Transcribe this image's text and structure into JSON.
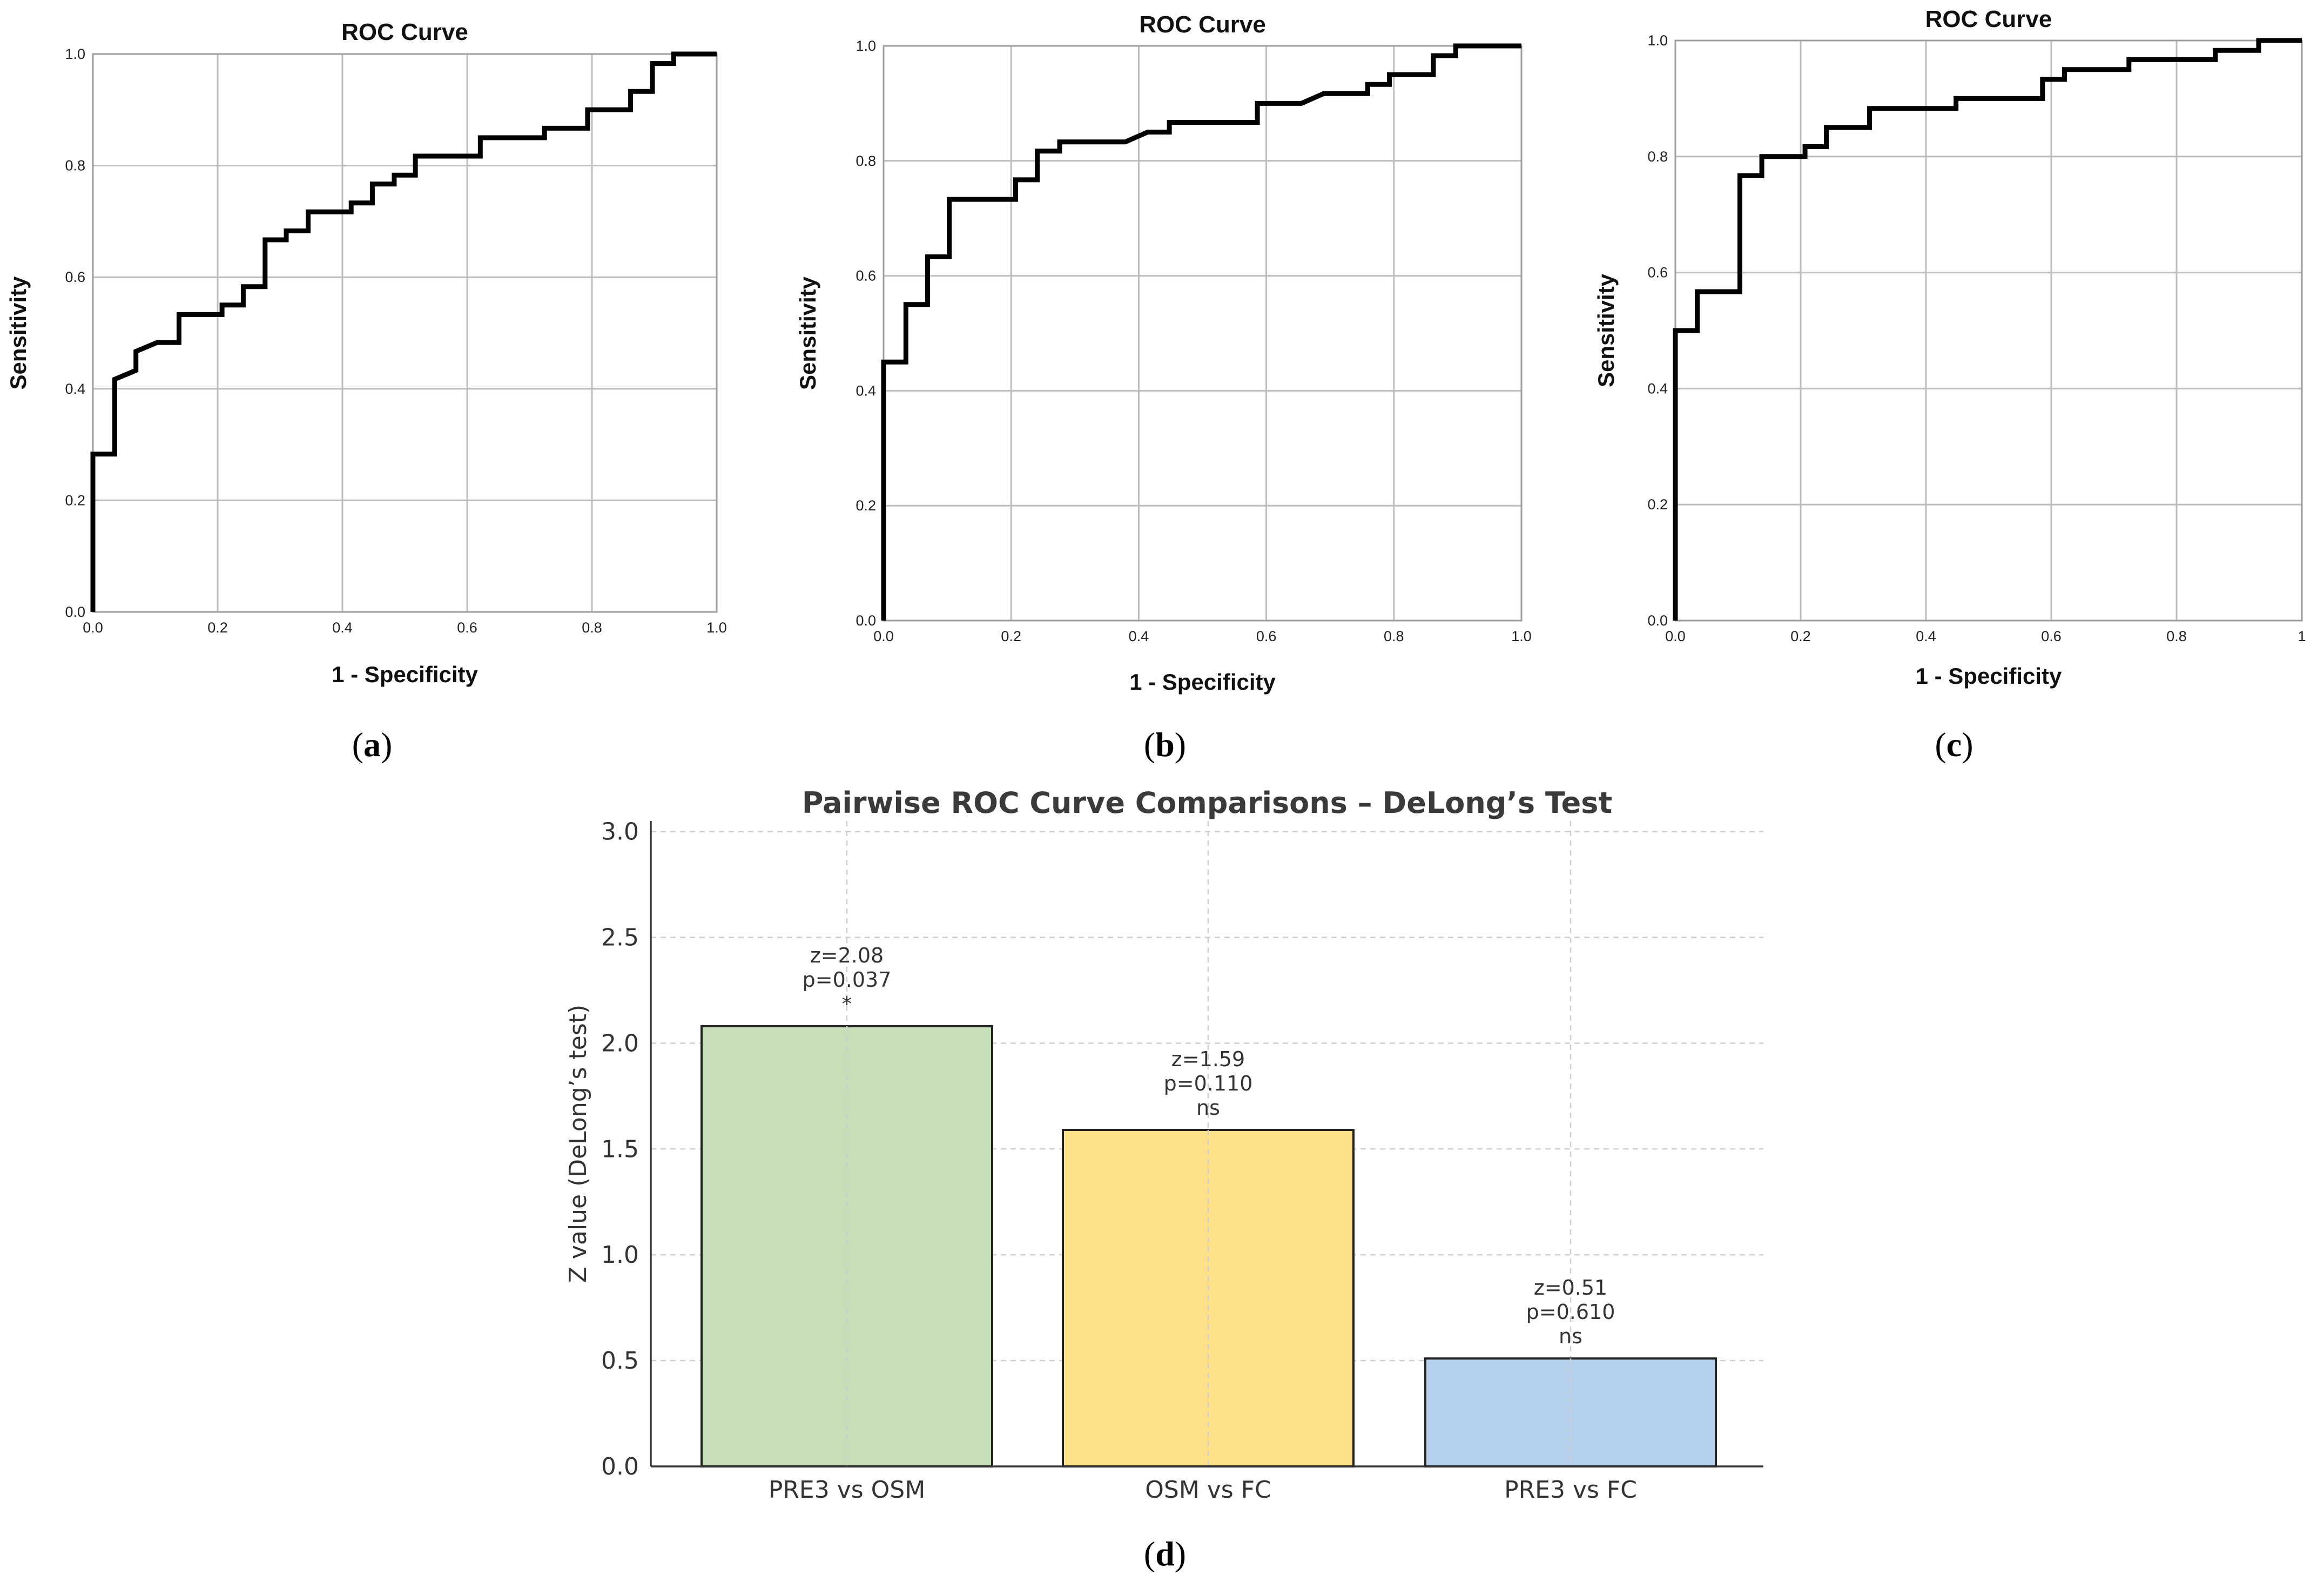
{
  "panels": [
    {
      "label_letter": "a",
      "open": "(",
      "close": ")"
    },
    {
      "label_letter": "b",
      "open": "(",
      "close": ")"
    },
    {
      "label_letter": "c",
      "open": "(",
      "close": ")"
    },
    {
      "label_letter": "d",
      "open": "(",
      "close": ")"
    }
  ],
  "chart_data": [
    {
      "type": "line",
      "title": "ROC Curve",
      "xlabel": "1 - Specificity",
      "ylabel": "Sensitivity",
      "xlim": [
        0,
        1
      ],
      "ylim": [
        0,
        1
      ],
      "grid": true,
      "xticks": [
        "0.0",
        "0.2",
        "0.4",
        "0.6",
        "0.8",
        "1.0"
      ],
      "yticks": [
        "0.0",
        "0.2",
        "0.4",
        "0.6",
        "0.8",
        "1.0"
      ],
      "series": [
        {
          "name": "ROC",
          "x": [
            0,
            0,
            0.035,
            0.035,
            0.069,
            0.069,
            0.103,
            0.103,
            0.138,
            0.138,
            0.207,
            0.207,
            0.241,
            0.241,
            0.276,
            0.276,
            0.31,
            0.31,
            0.345,
            0.345,
            0.414,
            0.414,
            0.448,
            0.448,
            0.483,
            0.483,
            0.517,
            0.517,
            0.621,
            0.621,
            0.724,
            0.724,
            0.793,
            0.793,
            0.862,
            0.862,
            0.897,
            0.897,
            0.931,
            0.931,
            1.0
          ],
          "y": [
            0,
            0.283,
            0.283,
            0.417,
            0.433,
            0.467,
            0.483,
            0.483,
            0.483,
            0.533,
            0.533,
            0.55,
            0.55,
            0.583,
            0.583,
            0.667,
            0.667,
            0.683,
            0.683,
            0.717,
            0.717,
            0.733,
            0.733,
            0.767,
            0.767,
            0.783,
            0.783,
            0.817,
            0.817,
            0.85,
            0.85,
            0.867,
            0.867,
            0.9,
            0.9,
            0.933,
            0.933,
            0.983,
            0.983,
            1.0,
            1.0
          ]
        }
      ]
    },
    {
      "type": "line",
      "title": "ROC Curve",
      "xlabel": "1 - Specificity",
      "ylabel": "Sensitivity",
      "xlim": [
        0,
        1
      ],
      "ylim": [
        0,
        1
      ],
      "grid": true,
      "xticks": [
        "0.0",
        "0.2",
        "0.4",
        "0.6",
        "0.8",
        "1.0"
      ],
      "yticks": [
        "0.0",
        "0.2",
        "0.4",
        "0.6",
        "0.8",
        "1.0"
      ],
      "series": [
        {
          "name": "ROC",
          "x": [
            0,
            0,
            0.035,
            0.035,
            0.069,
            0.069,
            0.103,
            0.103,
            0.207,
            0.207,
            0.241,
            0.241,
            0.276,
            0.276,
            0.379,
            0.414,
            0.448,
            0.448,
            0.586,
            0.586,
            0.655,
            0.69,
            0.759,
            0.759,
            0.793,
            0.793,
            0.862,
            0.862,
            0.897,
            0.897,
            1.0
          ],
          "y": [
            0,
            0.45,
            0.45,
            0.55,
            0.55,
            0.633,
            0.633,
            0.733,
            0.733,
            0.767,
            0.767,
            0.817,
            0.817,
            0.833,
            0.833,
            0.85,
            0.85,
            0.867,
            0.867,
            0.9,
            0.9,
            0.917,
            0.917,
            0.933,
            0.933,
            0.95,
            0.95,
            0.983,
            0.983,
            1.0,
            1.0
          ]
        }
      ]
    },
    {
      "type": "line",
      "title": "ROC Curve",
      "xlabel": "1 - Specificity",
      "ylabel": "Sensitivity",
      "xlim": [
        0,
        1
      ],
      "ylim": [
        0,
        1
      ],
      "grid": true,
      "xticks": [
        "0.0",
        "0.2",
        "0.4",
        "0.6",
        "0.8",
        "1"
      ],
      "yticks": [
        "0.0",
        "0.2",
        "0.4",
        "0.6",
        "0.8",
        "1.0"
      ],
      "series": [
        {
          "name": "ROC",
          "x": [
            0,
            0,
            0.035,
            0.035,
            0.103,
            0.103,
            0.138,
            0.138,
            0.207,
            0.207,
            0.241,
            0.241,
            0.31,
            0.31,
            0.448,
            0.448,
            0.586,
            0.586,
            0.621,
            0.621,
            0.724,
            0.724,
            0.862,
            0.862,
            0.931,
            0.931,
            1.0
          ],
          "y": [
            0,
            0.5,
            0.5,
            0.567,
            0.567,
            0.767,
            0.767,
            0.8,
            0.8,
            0.817,
            0.817,
            0.85,
            0.85,
            0.883,
            0.883,
            0.9,
            0.9,
            0.933,
            0.933,
            0.95,
            0.95,
            0.967,
            0.967,
            0.983,
            0.983,
            1.0,
            1.0
          ]
        }
      ]
    },
    {
      "type": "bar",
      "title": "Pairwise ROC Curve Comparisons – DeLong’s Test",
      "xlabel": "",
      "ylabel": "Z value (DeLong’s test)",
      "ylim": [
        0,
        3.05
      ],
      "yticks": [
        "0.0",
        "0.5",
        "1.0",
        "1.5",
        "2.0",
        "2.5",
        "3.0"
      ],
      "grid": true,
      "categories": [
        "PRE3 vs OSM",
        "OSM vs FC",
        "PRE3 vs FC"
      ],
      "values": [
        2.08,
        1.59,
        0.51
      ],
      "colors": [
        "#c6dfb9",
        "#ffe08a",
        "#b4d0ed"
      ],
      "annotations": [
        [
          "z=2.08",
          "p=0.037",
          "*"
        ],
        [
          "z=1.59",
          "p=0.110",
          "ns"
        ],
        [
          "z=0.51",
          "p=0.610",
          "ns"
        ]
      ]
    }
  ]
}
